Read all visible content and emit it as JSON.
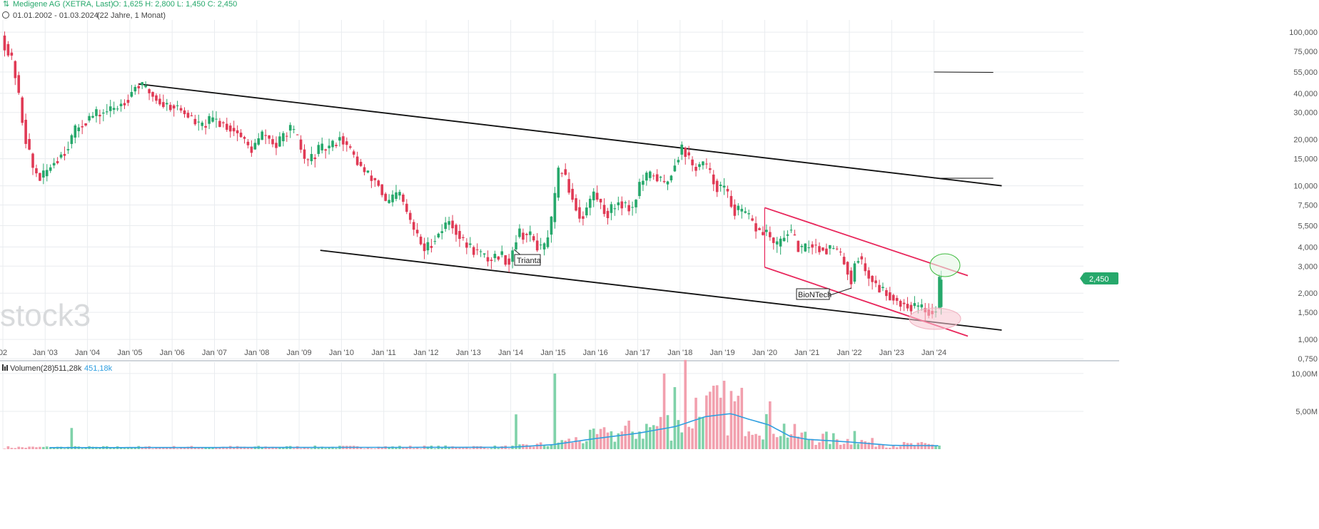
{
  "header": {
    "instrument": "Medigene AG (XETRA, Last)",
    "ohlc": "O: 1,625  H: 2,800  L: 1,450  C: 2,450",
    "range": "01.01.2002 - 01.03.2024",
    "span": "(22 Jahre, 1 Monat)"
  },
  "watermark": "stock3",
  "last_price_label": "2,450",
  "volume_legend": {
    "label": "Volumen(28)",
    "value1": "511,28k",
    "value2": "451,18k"
  },
  "annotations": {
    "trianta": "Trianta",
    "biontech": "BioNTech"
  },
  "colors": {
    "up": "#26a86b",
    "down": "#e03a55",
    "trend_black": "#111111",
    "trend_red": "#e8265b",
    "vol_up": "#7fd2a9",
    "vol_down": "#f2a0ae",
    "vol_ma": "#2f9fe0",
    "grid": "#e9ecef",
    "price_badge": "#26a86b"
  },
  "chart_data": [
    {
      "type": "candlestick",
      "title": "Medigene AG (XETRA, Last)",
      "yscale": "log",
      "ylim": [
        750,
        120000
      ],
      "xlim": [
        "2002-01",
        "2025-06"
      ],
      "y_ticks": [
        {
          "v": 100000,
          "label": "100,000"
        },
        {
          "v": 75000,
          "label": "75,000"
        },
        {
          "v": 55000,
          "label": "55,000"
        },
        {
          "v": 40000,
          "label": "40,000"
        },
        {
          "v": 30000,
          "label": "30,000"
        },
        {
          "v": 20000,
          "label": "20,000"
        },
        {
          "v": 15000,
          "label": "15,000"
        },
        {
          "v": 10000,
          "label": "10,000"
        },
        {
          "v": 7500,
          "label": "7,500"
        },
        {
          "v": 5500,
          "label": "5,500"
        },
        {
          "v": 4000,
          "label": "4,000"
        },
        {
          "v": 3000,
          "label": "3,000"
        },
        {
          "v": 2000,
          "label": "2,000"
        },
        {
          "v": 1500,
          "label": "1,500"
        },
        {
          "v": 1000,
          "label": "1,000"
        },
        {
          "v": 750,
          "label": "0,750"
        }
      ],
      "x_ticks": [
        {
          "year": 2002,
          "label": "02"
        },
        {
          "year": 2003,
          "label": "Jan '03"
        },
        {
          "year": 2004,
          "label": "Jan '04"
        },
        {
          "year": 2005,
          "label": "Jan '05"
        },
        {
          "year": 2006,
          "label": "Jan '06"
        },
        {
          "year": 2007,
          "label": "Jan '07"
        },
        {
          "year": 2008,
          "label": "Jan '08"
        },
        {
          "year": 2009,
          "label": "Jan '09"
        },
        {
          "year": 2010,
          "label": "Jan '10"
        },
        {
          "year": 2011,
          "label": "Jan '11"
        },
        {
          "year": 2012,
          "label": "Jan '12"
        },
        {
          "year": 2013,
          "label": "Jan '13"
        },
        {
          "year": 2014,
          "label": "Jan '14"
        },
        {
          "year": 2015,
          "label": "Jan '15"
        },
        {
          "year": 2016,
          "label": "Jan '16"
        },
        {
          "year": 2017,
          "label": "Jan '17"
        },
        {
          "year": 2018,
          "label": "Jan '18"
        },
        {
          "year": 2019,
          "label": "Jan '19"
        },
        {
          "year": 2020,
          "label": "Jan '20"
        },
        {
          "year": 2021,
          "label": "Jan '21"
        },
        {
          "year": 2022,
          "label": "Jan '22"
        },
        {
          "year": 2023,
          "label": "Jan '23"
        },
        {
          "year": 2024,
          "label": "Jan '24"
        }
      ],
      "price_anchors": [
        [
          2002.0,
          95000
        ],
        [
          2002.3,
          60000
        ],
        [
          2002.55,
          22000
        ],
        [
          2002.75,
          13000
        ],
        [
          2002.95,
          11000
        ],
        [
          2003.2,
          14000
        ],
        [
          2003.5,
          17000
        ],
        [
          2003.8,
          24000
        ],
        [
          2004.1,
          28000
        ],
        [
          2004.4,
          30000
        ],
        [
          2004.7,
          32000
        ],
        [
          2005.0,
          38000
        ],
        [
          2005.2,
          46000
        ],
        [
          2005.45,
          42000
        ],
        [
          2005.8,
          34000
        ],
        [
          2006.1,
          33000
        ],
        [
          2006.4,
          29000
        ],
        [
          2006.7,
          24000
        ],
        [
          2007.0,
          27000
        ],
        [
          2007.3,
          25000
        ],
        [
          2007.6,
          22000
        ],
        [
          2007.9,
          17000
        ],
        [
          2008.2,
          22000
        ],
        [
          2008.5,
          18000
        ],
        [
          2008.8,
          24000
        ],
        [
          2009.0,
          20000
        ],
        [
          2009.2,
          14000
        ],
        [
          2009.5,
          17000
        ],
        [
          2009.8,
          18000
        ],
        [
          2010.0,
          21000
        ],
        [
          2010.3,
          16000
        ],
        [
          2010.6,
          12000
        ],
        [
          2010.9,
          10500
        ],
        [
          2011.1,
          7500
        ],
        [
          2011.4,
          9000
        ],
        [
          2011.7,
          5500
        ],
        [
          2012.0,
          3800
        ],
        [
          2012.3,
          4800
        ],
        [
          2012.6,
          6000
        ],
        [
          2012.9,
          4300
        ],
        [
          2013.2,
          3800
        ],
        [
          2013.5,
          3300
        ],
        [
          2013.8,
          3600
        ],
        [
          2014.0,
          3200
        ],
        [
          2014.2,
          5000
        ],
        [
          2014.5,
          4700
        ],
        [
          2014.8,
          3700
        ],
        [
          2015.0,
          5800
        ],
        [
          2015.2,
          14000
        ],
        [
          2015.45,
          9000
        ],
        [
          2015.7,
          6000
        ],
        [
          2016.0,
          9000
        ],
        [
          2016.3,
          6500
        ],
        [
          2016.6,
          8000
        ],
        [
          2016.9,
          7000
        ],
        [
          2017.1,
          10500
        ],
        [
          2017.4,
          12000
        ],
        [
          2017.7,
          10000
        ],
        [
          2017.95,
          15000
        ],
        [
          2018.1,
          18000
        ],
        [
          2018.35,
          13000
        ],
        [
          2018.6,
          14000
        ],
        [
          2018.9,
          10000
        ],
        [
          2019.1,
          9500
        ],
        [
          2019.3,
          7000
        ],
        [
          2019.6,
          6500
        ],
        [
          2019.9,
          5000
        ],
        [
          2020.1,
          5000
        ],
        [
          2020.3,
          3900
        ],
        [
          2020.6,
          5200
        ],
        [
          2020.9,
          3700
        ],
        [
          2021.1,
          4200
        ],
        [
          2021.4,
          3900
        ],
        [
          2021.7,
          3900
        ],
        [
          2021.95,
          3100
        ],
        [
          2022.1,
          2300
        ],
        [
          2022.2,
          3700
        ],
        [
          2022.45,
          2700
        ],
        [
          2022.7,
          2200
        ],
        [
          2022.95,
          2000
        ],
        [
          2023.2,
          1750
        ],
        [
          2023.5,
          1650
        ],
        [
          2023.75,
          1600
        ],
        [
          2024.0,
          1500
        ],
        [
          2024.1,
          1625
        ],
        [
          2024.17,
          2450
        ]
      ],
      "last_candle": {
        "open": 1625,
        "high": 2800,
        "low": 1450,
        "close": 2450
      }
    },
    {
      "type": "bar",
      "title": "Volumen(28)",
      "ylabel": "",
      "y_ticks": [
        {
          "v": 10000000,
          "label": "10,00M"
        },
        {
          "v": 5000000,
          "label": "5,00M"
        }
      ],
      "ylim": [
        0,
        11500000
      ],
      "legend_values": [
        "511,28k",
        "451,18k"
      ],
      "spikes": [
        [
          2015.0,
          10000000
        ],
        [
          2015.15,
          1200000
        ],
        [
          2017.6,
          10000000
        ],
        [
          2017.85,
          8200000
        ],
        [
          2018.05,
          11800000
        ],
        [
          2018.35,
          6800000
        ],
        [
          2018.5,
          4200000
        ],
        [
          2003.55,
          2800000
        ],
        [
          2014.1,
          4600000
        ],
        [
          2022.1,
          2400000
        ],
        [
          2020.1,
          3000000
        ],
        [
          2016.25,
          2200000
        ]
      ],
      "ma_anchors": [
        [
          2002.0,
          200000
        ],
        [
          2014.0,
          250000
        ],
        [
          2015.0,
          600000
        ],
        [
          2016.0,
          1400000
        ],
        [
          2017.0,
          2100000
        ],
        [
          2017.9,
          3000000
        ],
        [
          2018.6,
          4300000
        ],
        [
          2019.2,
          4700000
        ],
        [
          2019.6,
          4000000
        ],
        [
          2020.1,
          3200000
        ],
        [
          2020.6,
          1700000
        ],
        [
          2021.0,
          1300000
        ],
        [
          2022.0,
          950000
        ],
        [
          2023.0,
          500000
        ],
        [
          2024.15,
          451180
        ]
      ]
    }
  ],
  "trendlines": {
    "black_upper": {
      "from": [
        2005.2,
        46000
      ],
      "to": [
        2025.6,
        10000
      ]
    },
    "black_lower": {
      "from": [
        2009.5,
        3800
      ],
      "to": [
        2025.6,
        1150
      ]
    },
    "red_upper": {
      "from": [
        2020.0,
        7200
      ],
      "to": [
        2024.8,
        2600
      ]
    },
    "red_lower": {
      "from": [
        2020.0,
        2950
      ],
      "to": [
        2024.8,
        1050
      ]
    },
    "short_a": {
      "from": [
        2024.0,
        55000
      ],
      "to": [
        2025.4,
        54700
      ]
    },
    "short_b": {
      "from": [
        2024.0,
        11200
      ],
      "to": [
        2025.4,
        11200
      ]
    }
  }
}
